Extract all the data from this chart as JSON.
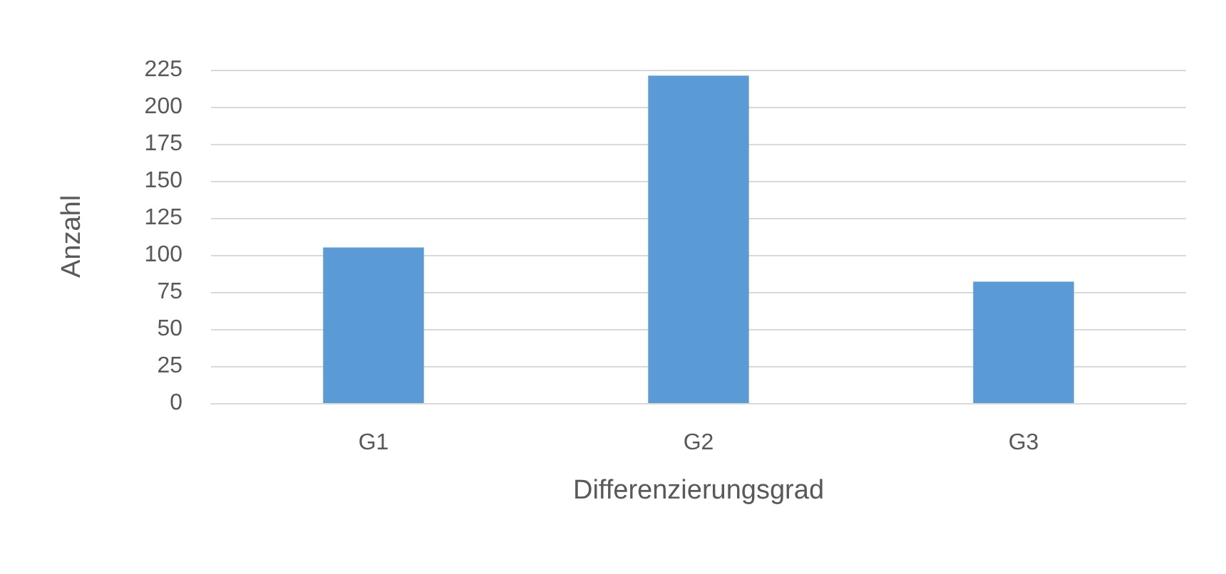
{
  "chart_data": {
    "type": "bar",
    "xlabel": "Differenzierungsgrad",
    "ylabel": "Anzahl",
    "categories": [
      "G1",
      "G2",
      "G3"
    ],
    "values": [
      105,
      221,
      82
    ],
    "color": "#5b9bd5",
    "ylim": [
      0,
      225
    ],
    "yticks": [
      0,
      25,
      50,
      75,
      100,
      125,
      150,
      175,
      200,
      225
    ],
    "grid": "y"
  }
}
